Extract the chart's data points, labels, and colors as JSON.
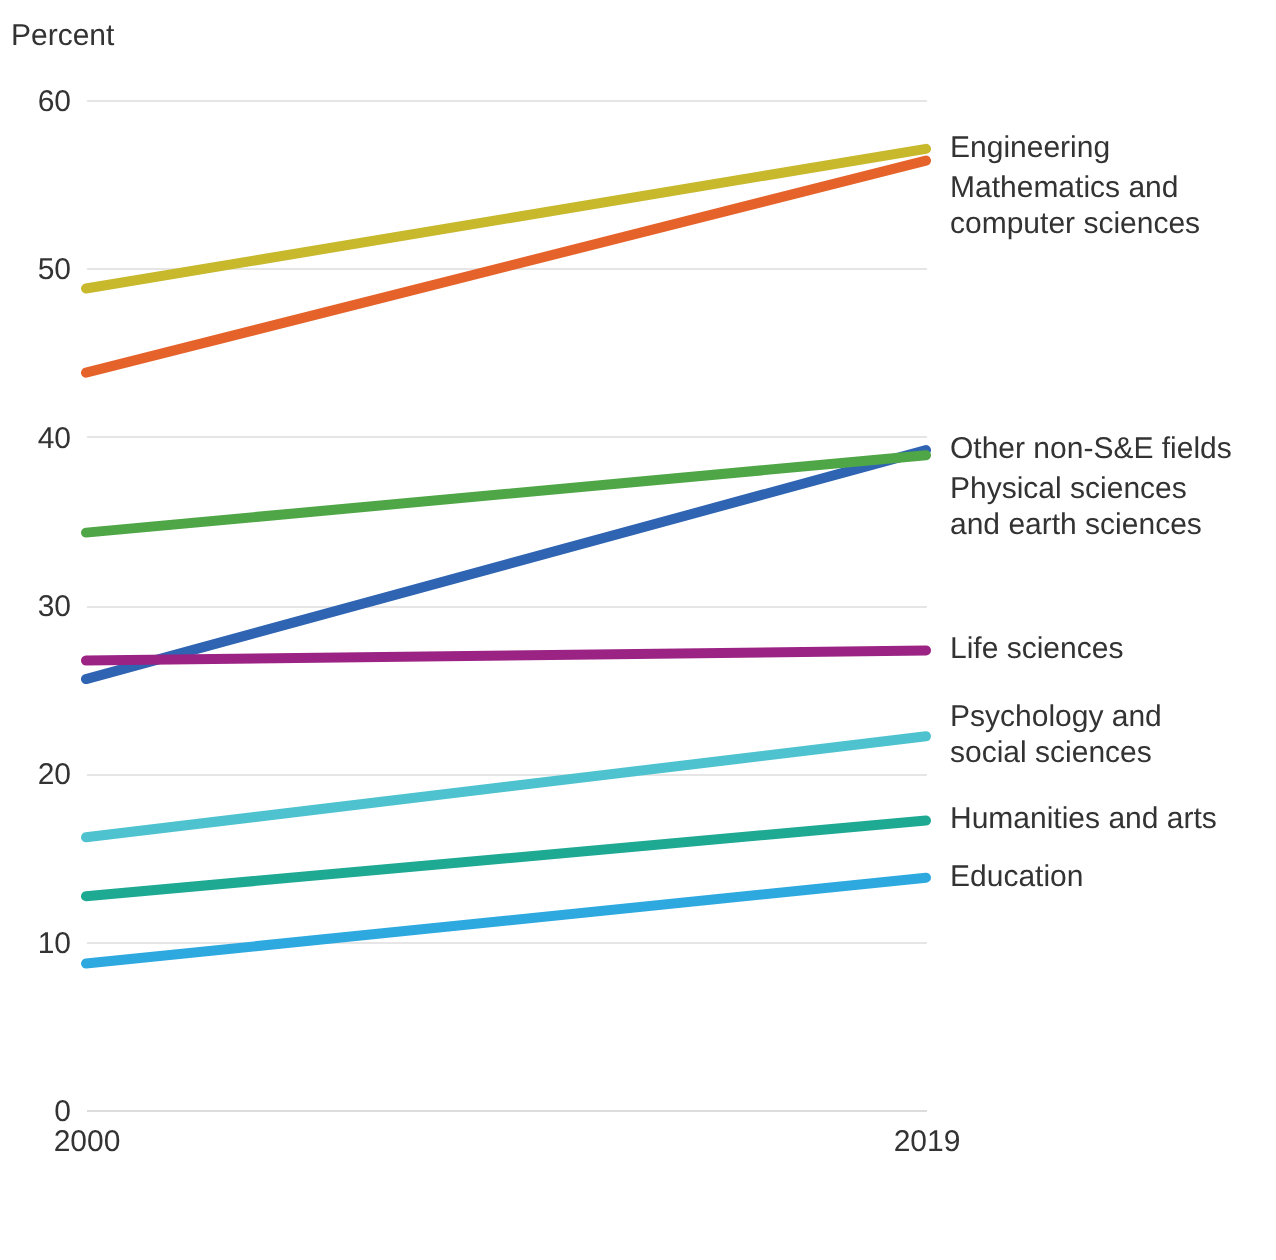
{
  "chart_data": {
    "type": "line",
    "ylabel": "Percent",
    "x": [
      2000,
      2019
    ],
    "xlim": [
      2000,
      2019
    ],
    "xticks": [
      2000,
      2019
    ],
    "ylim": [
      0,
      60
    ],
    "yticks": [
      0,
      10,
      20,
      30,
      40,
      50,
      60
    ],
    "grid": "y",
    "series": [
      {
        "name": "Engineering",
        "color": "#c8b92c",
        "values": [
          48.8,
          57.1
        ]
      },
      {
        "name": "Mathematics and computer sciences",
        "color": "#e5632a",
        "values": [
          43.8,
          56.4
        ]
      },
      {
        "name": "Other non-S&E fields",
        "color": "#2f64b2",
        "values": [
          25.6,
          39.2
        ]
      },
      {
        "name": "Physical sciences and earth sciences",
        "color": "#4fa646",
        "values": [
          34.3,
          38.9
        ]
      },
      {
        "name": "Life sciences",
        "color": "#9b2384",
        "values": [
          26.7,
          27.3
        ]
      },
      {
        "name": "Psychology and social sciences",
        "color": "#4ec3cf",
        "values": [
          16.2,
          22.2
        ]
      },
      {
        "name": "Humanities and arts",
        "color": "#1ea993",
        "values": [
          12.7,
          17.2
        ]
      },
      {
        "name": "Education",
        "color": "#2ea9e0",
        "values": [
          8.7,
          13.8
        ]
      }
    ]
  }
}
